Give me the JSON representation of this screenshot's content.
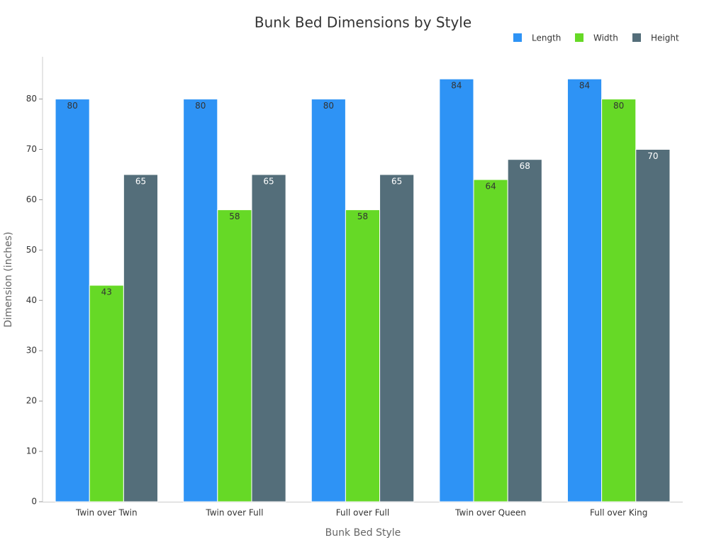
{
  "chart_data": {
    "type": "bar",
    "title": "Bunk Bed Dimensions by Style",
    "x_label": "Bunk Bed Style",
    "y_label": "Dimension (inches)",
    "categories": [
      "Twin over Twin",
      "Twin over Full",
      "Full over Full",
      "Twin over Queen",
      "Full over King"
    ],
    "series": [
      {
        "name": "Length",
        "color": "#2e93f5",
        "values": [
          80,
          80,
          80,
          84,
          84
        ]
      },
      {
        "name": "Width",
        "color": "#66d926",
        "values": [
          43,
          58,
          58,
          64,
          80
        ]
      },
      {
        "name": "Height",
        "color": "#546e7a",
        "values": [
          65,
          65,
          65,
          68,
          70
        ]
      }
    ],
    "ylim": [
      0,
      88.4
    ],
    "yticks": [
      0,
      10,
      20,
      30,
      40,
      50,
      60,
      70,
      80
    ],
    "grid": false,
    "legend": "top-right"
  }
}
